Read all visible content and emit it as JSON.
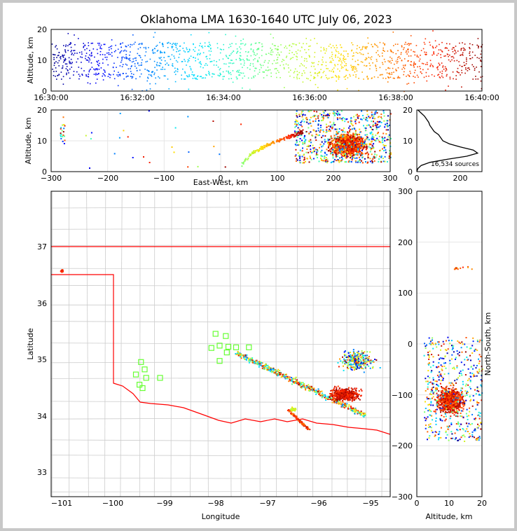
{
  "chart_data": [
    {
      "type": "scatter",
      "panel": "time-altitude",
      "title": "Oklahoma LMA 1630-1640 UTC July 06, 2023",
      "ylabel": "Altitude, km",
      "ylim": [
        0,
        20
      ],
      "yticks": [
        "0",
        "10",
        "20"
      ],
      "xticks": [
        "16:30:00",
        "16:32:00",
        "16:34:00",
        "16:36:00",
        "16:38:00",
        "16:40:00"
      ],
      "xlim_minutes": [
        0,
        10
      ],
      "color_by": "time",
      "colormap": [
        "#00008b",
        "#0000ff",
        "#0080ff",
        "#00e0ff",
        "#40ffb0",
        "#b0ff40",
        "#ffe000",
        "#ff8000",
        "#ff2000",
        "#8b0000"
      ],
      "altitude_band_km": [
        4,
        16
      ]
    },
    {
      "type": "scatter",
      "panel": "east-west-altitude",
      "xlabel": "East-West, km",
      "ylabel": "Altitude, km",
      "xlim": [
        -300,
        300
      ],
      "ylim": [
        0,
        20
      ],
      "xticks": [
        "−300",
        "−200",
        "−100",
        "0",
        "100",
        "200",
        "300"
      ],
      "yticks": [
        "0",
        "10",
        "20"
      ],
      "main_cluster_x_km": [
        150,
        300
      ],
      "densest_x_km": 225,
      "densest_alt_km": 9
    },
    {
      "type": "line",
      "panel": "altitude-histogram",
      "xticks": [
        "0",
        "200"
      ],
      "yticks": [
        "0",
        "10",
        "20"
      ],
      "xlim": [
        0,
        300
      ],
      "ylim": [
        0,
        20
      ],
      "annotation": "16,534 sources",
      "profile": [
        [
          0,
          0
        ],
        [
          5,
          1
        ],
        [
          20,
          2
        ],
        [
          60,
          3
        ],
        [
          140,
          4
        ],
        [
          230,
          5
        ],
        [
          280,
          6
        ],
        [
          260,
          7
        ],
        [
          200,
          8
        ],
        [
          150,
          9
        ],
        [
          120,
          10
        ],
        [
          110,
          11
        ],
        [
          100,
          12
        ],
        [
          80,
          13
        ],
        [
          70,
          14
        ],
        [
          60,
          15
        ],
        [
          55,
          16
        ],
        [
          45,
          17
        ],
        [
          35,
          18
        ],
        [
          20,
          19
        ],
        [
          5,
          20
        ]
      ]
    },
    {
      "type": "scatter",
      "panel": "plan-view-map",
      "xlabel": "Longitude",
      "ylabel": "Latitude",
      "xlim": [
        -101.2,
        -94.6
      ],
      "ylim": [
        32.6,
        38.0
      ],
      "xticks": [
        "−101",
        "−100",
        "−99",
        "−98",
        "−97",
        "−96",
        "−95"
      ],
      "yticks": [
        "33",
        "34",
        "35",
        "36",
        "37"
      ],
      "station_markers_lonlat": [
        [
          -98.0,
          35.48
        ],
        [
          -97.8,
          35.44
        ],
        [
          -97.92,
          35.27
        ],
        [
          -98.08,
          35.23
        ],
        [
          -97.75,
          35.25
        ],
        [
          -97.78,
          35.15
        ],
        [
          -97.6,
          35.24
        ],
        [
          -97.35,
          35.24
        ],
        [
          -97.92,
          35.0
        ],
        [
          -99.45,
          34.98
        ],
        [
          -99.38,
          34.85
        ],
        [
          -99.55,
          34.76
        ],
        [
          -99.35,
          34.7
        ],
        [
          -99.08,
          34.7
        ],
        [
          -99.48,
          34.58
        ],
        [
          -99.42,
          34.52
        ]
      ]
    },
    {
      "type": "scatter",
      "panel": "altitude-north-south",
      "xlabel": "Altitude, km",
      "ylabel": "North-South, km",
      "xlim": [
        0,
        20
      ],
      "ylim": [
        -300,
        300
      ],
      "xticks": [
        "0",
        "10",
        "20"
      ],
      "yticks": [
        "−300",
        "−200",
        "−100",
        "0",
        "100",
        "200",
        "300"
      ]
    }
  ]
}
